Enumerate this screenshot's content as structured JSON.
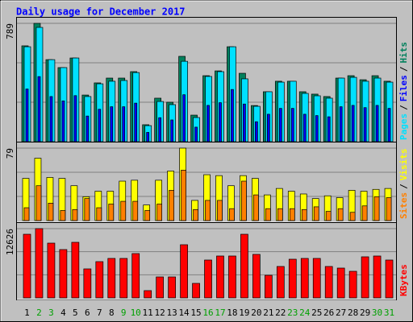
{
  "chart_data": [
    {
      "type": "bar",
      "title": "Daily usage for December 2017",
      "legend_separator": "/",
      "ylim": [
        0,
        789
      ],
      "yticks": [
        789
      ],
      "series": [
        {
          "name": "Pages",
          "color": "#00e0ff",
          "values": [
            633,
            762,
            547,
            494,
            558,
            301,
            386,
            403,
            408,
            461,
            107,
            268,
            247,
            536,
            161,
            435,
            467,
            633,
            419,
            236,
            333,
            397,
            403,
            322,
            306,
            290,
            424,
            429,
            403,
            424,
            397
          ]
        },
        {
          "name": "Files",
          "color": "#0000ff",
          "values": [
            351,
            434,
            301,
            272,
            307,
            171,
            216,
            233,
            233,
            257,
            62,
            160,
            145,
            313,
            97,
            242,
            260,
            348,
            251,
            133,
            183,
            222,
            222,
            183,
            174,
            166,
            233,
            242,
            227,
            242,
            222
          ]
        },
        {
          "name": "Hits",
          "color": "#00805c",
          "values": [
            639,
            789,
            547,
            494,
            558,
            311,
            392,
            424,
            424,
            467,
            113,
            290,
            263,
            569,
            177,
            440,
            472,
            633,
            456,
            241,
            333,
            403,
            403,
            333,
            317,
            301,
            424,
            440,
            413,
            440,
            403
          ]
        }
      ]
    },
    {
      "type": "bar",
      "legend_separator": "/",
      "ylim": [
        0,
        79
      ],
      "yticks": [
        79
      ],
      "series": [
        {
          "name": "Sites",
          "color": "#ff8000",
          "values": [
            14,
            38,
            19,
            11,
            12,
            24,
            14,
            18,
            21,
            21,
            11,
            18,
            33,
            55,
            12,
            22,
            22,
            13,
            43,
            28,
            13,
            13,
            13,
            12,
            15,
            10,
            13,
            9,
            16,
            26,
            25
          ]
        },
        {
          "name": "Visits",
          "color": "#ffff00",
          "values": [
            46,
            68,
            47,
            46,
            38,
            26,
            32,
            32,
            43,
            44,
            17,
            44,
            54,
            79,
            22,
            50,
            49,
            38,
            49,
            46,
            28,
            35,
            32,
            29,
            24,
            27,
            25,
            33,
            32,
            34,
            35
          ]
        }
      ]
    },
    {
      "type": "bar",
      "ylim": [
        0,
        12626
      ],
      "yticks": [
        12626
      ],
      "categories": [
        "1",
        "2",
        "3",
        "4",
        "5",
        "6",
        "7",
        "8",
        "9",
        "10",
        "11",
        "12",
        "13",
        "14",
        "15",
        "16",
        "17",
        "18",
        "19",
        "20",
        "21",
        "22",
        "23",
        "24",
        "25",
        "26",
        "27",
        "28",
        "29",
        "30",
        "31"
      ],
      "category_colors": [
        "#000000",
        "#00a000",
        "#00a000",
        "#000000",
        "#000000",
        "#000000",
        "#000000",
        "#000000",
        "#00a000",
        "#00a000",
        "#000000",
        "#000000",
        "#000000",
        "#000000",
        "#000000",
        "#00a000",
        "#00a000",
        "#000000",
        "#000000",
        "#000000",
        "#000000",
        "#000000",
        "#00a000",
        "#00a000",
        "#000000",
        "#000000",
        "#000000",
        "#000000",
        "#000000",
        "#00a000",
        "#00a000"
      ],
      "series": [
        {
          "name": "KBytes",
          "color": "#ff0000",
          "values": [
            11598,
            12626,
            9983,
            8809,
            10130,
            5285,
            6607,
            7194,
            7194,
            8075,
            1321,
            3817,
            3817,
            9690,
            2643,
            6900,
            7635,
            7635,
            11598,
            7929,
            4111,
            5726,
            7047,
            7194,
            7194,
            5726,
            5432,
            4845,
            7488,
            7635,
            6900
          ]
        }
      ]
    }
  ]
}
